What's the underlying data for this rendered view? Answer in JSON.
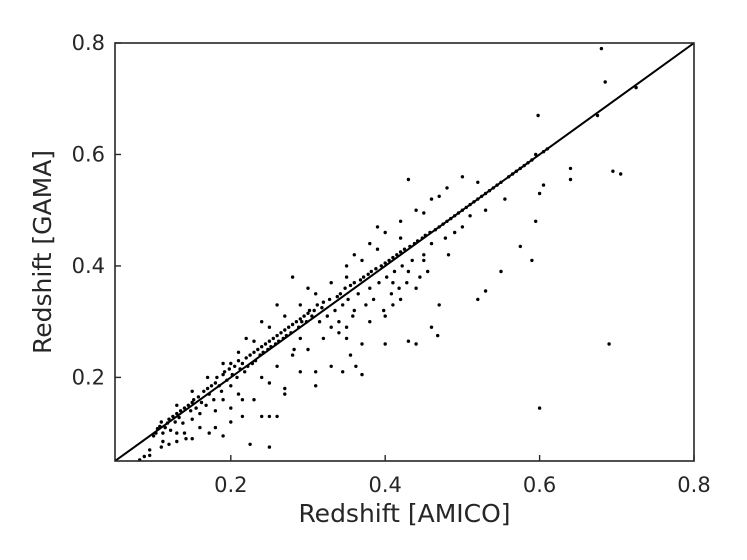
{
  "chart_data": {
    "type": "scatter",
    "xlabel": "Redshift [AMICO]",
    "ylabel": "Redshift [GAMA]",
    "xlim": [
      0.05,
      0.8
    ],
    "ylim": [
      0.05,
      0.8
    ],
    "x_ticks": [
      0.2,
      0.4,
      0.6,
      0.8
    ],
    "y_ticks": [
      0.2,
      0.4,
      0.6,
      0.8
    ],
    "x_tick_labels": [
      "0.2",
      "0.4",
      "0.6",
      "0.8"
    ],
    "y_tick_labels": [
      "0.2",
      "0.4",
      "0.6",
      "0.8"
    ],
    "grid": false,
    "reference_line": {
      "x": [
        0.05,
        0.8
      ],
      "y": [
        0.05,
        0.8
      ]
    },
    "series": [
      {
        "points": [
          [
            0.082,
            0.052
          ],
          [
            0.088,
            0.058
          ],
          [
            0.095,
            0.06
          ],
          [
            0.1,
            0.095
          ],
          [
            0.103,
            0.1
          ],
          [
            0.105,
            0.108
          ],
          [
            0.108,
            0.112
          ],
          [
            0.11,
            0.12
          ],
          [
            0.112,
            0.1
          ],
          [
            0.112,
            0.085
          ],
          [
            0.115,
            0.11
          ],
          [
            0.118,
            0.118
          ],
          [
            0.12,
            0.125
          ],
          [
            0.122,
            0.105
          ],
          [
            0.125,
            0.13
          ],
          [
            0.128,
            0.12
          ],
          [
            0.13,
            0.1
          ],
          [
            0.13,
            0.135
          ],
          [
            0.133,
            0.128
          ],
          [
            0.135,
            0.14
          ],
          [
            0.138,
            0.118
          ],
          [
            0.14,
            0.145
          ],
          [
            0.142,
            0.09
          ],
          [
            0.145,
            0.15
          ],
          [
            0.148,
            0.14
          ],
          [
            0.15,
            0.155
          ],
          [
            0.15,
            0.125
          ],
          [
            0.152,
            0.16
          ],
          [
            0.155,
            0.145
          ],
          [
            0.158,
            0.165
          ],
          [
            0.16,
            0.135
          ],
          [
            0.162,
            0.155
          ],
          [
            0.165,
            0.175
          ],
          [
            0.168,
            0.15
          ],
          [
            0.17,
            0.18
          ],
          [
            0.172,
            0.17
          ],
          [
            0.172,
            0.1
          ],
          [
            0.175,
            0.185
          ],
          [
            0.178,
            0.16
          ],
          [
            0.18,
            0.19
          ],
          [
            0.18,
            0.14
          ],
          [
            0.182,
            0.2
          ],
          [
            0.185,
            0.185
          ],
          [
            0.188,
            0.175
          ],
          [
            0.19,
            0.205
          ],
          [
            0.19,
            0.16
          ],
          [
            0.192,
            0.21
          ],
          [
            0.195,
            0.195
          ],
          [
            0.198,
            0.215
          ],
          [
            0.2,
            0.185
          ],
          [
            0.2,
            0.225
          ],
          [
            0.202,
            0.205
          ],
          [
            0.205,
            0.22
          ],
          [
            0.208,
            0.2
          ],
          [
            0.21,
            0.23
          ],
          [
            0.212,
            0.215
          ],
          [
            0.215,
            0.225
          ],
          [
            0.215,
            0.13
          ],
          [
            0.218,
            0.21
          ],
          [
            0.22,
            0.235
          ],
          [
            0.222,
            0.22
          ],
          [
            0.225,
            0.24
          ],
          [
            0.228,
            0.225
          ],
          [
            0.23,
            0.245
          ],
          [
            0.232,
            0.23
          ],
          [
            0.235,
            0.25
          ],
          [
            0.238,
            0.24
          ],
          [
            0.24,
            0.255
          ],
          [
            0.24,
            0.2
          ],
          [
            0.242,
            0.245
          ],
          [
            0.245,
            0.26
          ],
          [
            0.248,
            0.25
          ],
          [
            0.25,
            0.265
          ],
          [
            0.25,
            0.13
          ],
          [
            0.252,
            0.255
          ],
          [
            0.255,
            0.27
          ],
          [
            0.258,
            0.26
          ],
          [
            0.26,
            0.275
          ],
          [
            0.26,
            0.13
          ],
          [
            0.262,
            0.265
          ],
          [
            0.265,
            0.28
          ],
          [
            0.268,
            0.27
          ],
          [
            0.27,
            0.285
          ],
          [
            0.27,
            0.17
          ],
          [
            0.272,
            0.275
          ],
          [
            0.275,
            0.29
          ],
          [
            0.278,
            0.28
          ],
          [
            0.28,
            0.295
          ],
          [
            0.282,
            0.25
          ],
          [
            0.285,
            0.3
          ],
          [
            0.288,
            0.29
          ],
          [
            0.29,
            0.305
          ],
          [
            0.29,
            0.27
          ],
          [
            0.292,
            0.3
          ],
          [
            0.295,
            0.31
          ],
          [
            0.298,
            0.3
          ],
          [
            0.3,
            0.315
          ],
          [
            0.3,
            0.25
          ],
          [
            0.302,
            0.32
          ],
          [
            0.305,
            0.31
          ],
          [
            0.308,
            0.32
          ],
          [
            0.31,
            0.185
          ],
          [
            0.312,
            0.33
          ],
          [
            0.315,
            0.3
          ],
          [
            0.318,
            0.325
          ],
          [
            0.32,
            0.335
          ],
          [
            0.325,
            0.31
          ],
          [
            0.328,
            0.34
          ],
          [
            0.33,
            0.29
          ],
          [
            0.335,
            0.32
          ],
          [
            0.338,
            0.345
          ],
          [
            0.34,
            0.3
          ],
          [
            0.342,
            0.35
          ],
          [
            0.345,
            0.33
          ],
          [
            0.348,
            0.36
          ],
          [
            0.35,
            0.29
          ],
          [
            0.35,
            0.4
          ],
          [
            0.352,
            0.34
          ],
          [
            0.355,
            0.365
          ],
          [
            0.358,
            0.31
          ],
          [
            0.36,
            0.37
          ],
          [
            0.362,
            0.22
          ],
          [
            0.365,
            0.35
          ],
          [
            0.368,
            0.375
          ],
          [
            0.37,
            0.205
          ],
          [
            0.372,
            0.38
          ],
          [
            0.375,
            0.33
          ],
          [
            0.378,
            0.385
          ],
          [
            0.38,
            0.36
          ],
          [
            0.382,
            0.39
          ],
          [
            0.385,
            0.34
          ],
          [
            0.388,
            0.395
          ],
          [
            0.39,
            0.47
          ],
          [
            0.392,
            0.37
          ],
          [
            0.395,
            0.4
          ],
          [
            0.398,
            0.32
          ],
          [
            0.4,
            0.405
          ],
          [
            0.4,
            0.26
          ],
          [
            0.402,
            0.38
          ],
          [
            0.405,
            0.41
          ],
          [
            0.408,
            0.35
          ],
          [
            0.41,
            0.415
          ],
          [
            0.412,
            0.39
          ],
          [
            0.415,
            0.42
          ],
          [
            0.418,
            0.36
          ],
          [
            0.42,
            0.425
          ],
          [
            0.422,
            0.4
          ],
          [
            0.425,
            0.43
          ],
          [
            0.428,
            0.37
          ],
          [
            0.43,
            0.555
          ],
          [
            0.432,
            0.435
          ],
          [
            0.435,
            0.41
          ],
          [
            0.438,
            0.44
          ],
          [
            0.44,
            0.26
          ],
          [
            0.442,
            0.445
          ],
          [
            0.445,
            0.38
          ],
          [
            0.448,
            0.45
          ],
          [
            0.45,
            0.42
          ],
          [
            0.452,
            0.455
          ],
          [
            0.455,
            0.39
          ],
          [
            0.458,
            0.46
          ],
          [
            0.46,
            0.44
          ],
          [
            0.465,
            0.465
          ],
          [
            0.468,
            0.275
          ],
          [
            0.47,
            0.47
          ],
          [
            0.47,
            0.33
          ],
          [
            0.475,
            0.475
          ],
          [
            0.478,
            0.45
          ],
          [
            0.48,
            0.48
          ],
          [
            0.482,
            0.42
          ],
          [
            0.485,
            0.485
          ],
          [
            0.49,
            0.49
          ],
          [
            0.49,
            0.46
          ],
          [
            0.495,
            0.495
          ],
          [
            0.5,
            0.5
          ],
          [
            0.5,
            0.47
          ],
          [
            0.505,
            0.505
          ],
          [
            0.51,
            0.51
          ],
          [
            0.51,
            0.49
          ],
          [
            0.515,
            0.515
          ],
          [
            0.52,
            0.52
          ],
          [
            0.52,
            0.34
          ],
          [
            0.525,
            0.525
          ],
          [
            0.53,
            0.53
          ],
          [
            0.53,
            0.5
          ],
          [
            0.535,
            0.535
          ],
          [
            0.54,
            0.54
          ],
          [
            0.545,
            0.545
          ],
          [
            0.55,
            0.55
          ],
          [
            0.555,
            0.52
          ],
          [
            0.56,
            0.56
          ],
          [
            0.565,
            0.565
          ],
          [
            0.57,
            0.57
          ],
          [
            0.575,
            0.575
          ],
          [
            0.58,
            0.58
          ],
          [
            0.585,
            0.585
          ],
          [
            0.59,
            0.59
          ],
          [
            0.595,
            0.6
          ],
          [
            0.598,
            0.67
          ],
          [
            0.6,
            0.145
          ],
          [
            0.6,
            0.53
          ],
          [
            0.605,
            0.605
          ],
          [
            0.61,
            0.61
          ],
          [
            0.605,
            0.545
          ],
          [
            0.64,
            0.575
          ],
          [
            0.64,
            0.555
          ],
          [
            0.675,
            0.67
          ],
          [
            0.68,
            0.79
          ],
          [
            0.685,
            0.73
          ],
          [
            0.69,
            0.26
          ],
          [
            0.695,
            0.57
          ],
          [
            0.705,
            0.565
          ],
          [
            0.725,
            0.72
          ],
          [
            0.59,
            0.41
          ],
          [
            0.575,
            0.435
          ],
          [
            0.595,
            0.48
          ],
          [
            0.55,
            0.39
          ],
          [
            0.53,
            0.355
          ],
          [
            0.46,
            0.29
          ],
          [
            0.43,
            0.265
          ],
          [
            0.41,
            0.33
          ],
          [
            0.37,
            0.26
          ],
          [
            0.355,
            0.24
          ],
          [
            0.345,
            0.21
          ],
          [
            0.33,
            0.22
          ],
          [
            0.29,
            0.21
          ],
          [
            0.27,
            0.18
          ],
          [
            0.25,
            0.19
          ],
          [
            0.23,
            0.16
          ],
          [
            0.21,
            0.17
          ],
          [
            0.2,
            0.12
          ],
          [
            0.19,
            0.095
          ],
          [
            0.18,
            0.11
          ],
          [
            0.16,
            0.11
          ],
          [
            0.15,
            0.09
          ],
          [
            0.14,
            0.1
          ],
          [
            0.13,
            0.085
          ],
          [
            0.12,
            0.08
          ],
          [
            0.11,
            0.075
          ],
          [
            0.095,
            0.07
          ],
          [
            0.25,
            0.075
          ],
          [
            0.225,
            0.08
          ],
          [
            0.24,
            0.13
          ],
          [
            0.2,
            0.145
          ],
          [
            0.215,
            0.16
          ],
          [
            0.31,
            0.21
          ],
          [
            0.3,
            0.36
          ],
          [
            0.28,
            0.38
          ],
          [
            0.26,
            0.33
          ],
          [
            0.24,
            0.3
          ],
          [
            0.22,
            0.27
          ],
          [
            0.36,
            0.42
          ],
          [
            0.38,
            0.44
          ],
          [
            0.4,
            0.46
          ],
          [
            0.42,
            0.48
          ],
          [
            0.44,
            0.5
          ],
          [
            0.46,
            0.52
          ],
          [
            0.48,
            0.54
          ],
          [
            0.5,
            0.56
          ],
          [
            0.52,
            0.55
          ],
          [
            0.47,
            0.525
          ],
          [
            0.45,
            0.495
          ],
          [
            0.42,
            0.45
          ],
          [
            0.39,
            0.43
          ],
          [
            0.33,
            0.37
          ],
          [
            0.31,
            0.35
          ],
          [
            0.29,
            0.33
          ],
          [
            0.27,
            0.31
          ],
          [
            0.25,
            0.29
          ],
          [
            0.23,
            0.265
          ],
          [
            0.21,
            0.245
          ],
          [
            0.19,
            0.225
          ],
          [
            0.17,
            0.2
          ],
          [
            0.15,
            0.175
          ],
          [
            0.13,
            0.15
          ],
          [
            0.35,
            0.38
          ],
          [
            0.37,
            0.41
          ],
          [
            0.41,
            0.37
          ],
          [
            0.43,
            0.39
          ],
          [
            0.45,
            0.41
          ],
          [
            0.36,
            0.32
          ],
          [
            0.34,
            0.28
          ],
          [
            0.38,
            0.3
          ],
          [
            0.4,
            0.31
          ],
          [
            0.42,
            0.34
          ],
          [
            0.44,
            0.36
          ],
          [
            0.35,
            0.27
          ],
          [
            0.32,
            0.27
          ],
          [
            0.28,
            0.24
          ],
          [
            0.26,
            0.22
          ]
        ]
      }
    ]
  }
}
